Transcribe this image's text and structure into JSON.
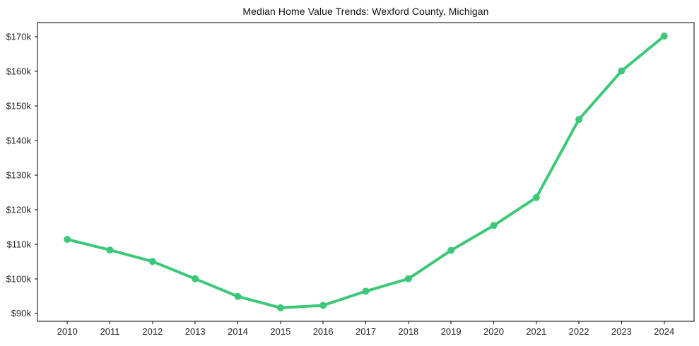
{
  "page": {
    "background_color": "#ffffff"
  },
  "chart_data": {
    "type": "line",
    "title": "Median Home Value Trends: Wexford County, Michigan",
    "x": [
      2010,
      2011,
      2012,
      2013,
      2014,
      2015,
      2016,
      2017,
      2018,
      2019,
      2020,
      2021,
      2022,
      2023,
      2024
    ],
    "xtick_labels": [
      "2010",
      "2011",
      "2012",
      "2013",
      "2014",
      "2015",
      "2016",
      "2017",
      "2018",
      "2019",
      "2020",
      "2021",
      "2022",
      "2023",
      "2024"
    ],
    "values": [
      111.4,
      108.3,
      105.0,
      100.0,
      94.9,
      91.6,
      92.3,
      96.4,
      100.0,
      108.2,
      115.4,
      123.5,
      146.1,
      160.1,
      170.2
    ],
    "unit": "USD thousands",
    "xlabel": "",
    "ylabel": "",
    "ytick_values": [
      90,
      100,
      110,
      120,
      130,
      140,
      150,
      160,
      170
    ],
    "ytick_labels": [
      "$90k",
      "$100k",
      "$110k",
      "$120k",
      "$130k",
      "$140k",
      "$150k",
      "$160k",
      "$170k"
    ],
    "xlim": [
      2009.3,
      2024.7
    ],
    "ylim": [
      87.7,
      174.1
    ],
    "grid": false,
    "legend": "none",
    "line_color": "#3cc878",
    "marker": "circle",
    "marker_radius": 5,
    "line_width": 4,
    "axis_color": "#000000",
    "tick_label_color": "#262626",
    "title_color": "#111111"
  }
}
